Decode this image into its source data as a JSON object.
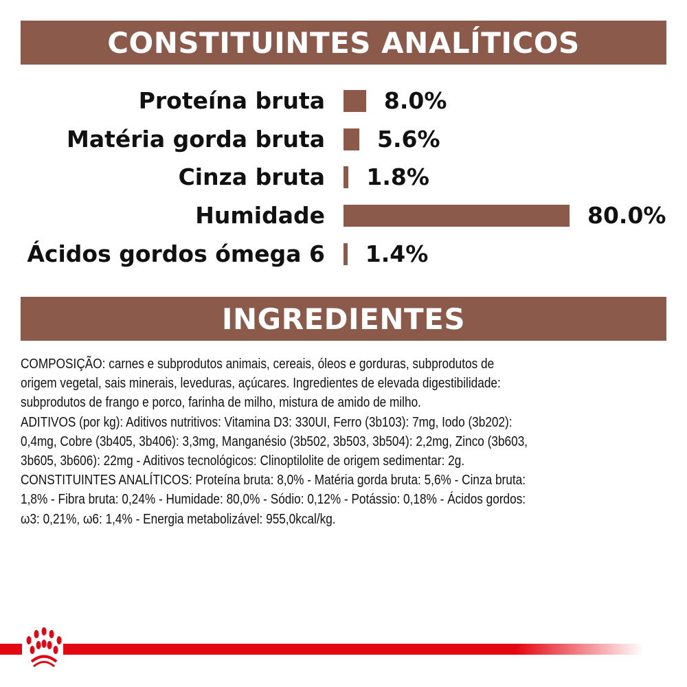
{
  "header1": "CONSTITUINTES ANALÍTICOS",
  "header2": "INGREDIENTES",
  "colors": {
    "band": "#8b5a4b",
    "bar": "#8b5a4b",
    "brand_red": "#e30613"
  },
  "chart_data": {
    "type": "bar",
    "orientation": "horizontal",
    "categories": [
      "Proteína bruta",
      "Matéria gorda bruta",
      "Cinza bruta",
      "Humidade",
      "Ácidos gordos ómega 6"
    ],
    "values": [
      8.0,
      5.6,
      1.8,
      80.0,
      1.4
    ],
    "value_labels": [
      "8.0%",
      "5.6%",
      "1.8%",
      "80.0%",
      "1.4%"
    ],
    "unit": "%",
    "xlim": [
      0,
      80
    ],
    "grid": false
  },
  "ingredients_lines": [
    "COMPOSIÇÃO: carnes e subprodutos animais, cereais, óleos e gorduras, subprodutos de",
    "origem vegetal, sais minerais, leveduras, açúcares. Ingredientes de elevada digestibilidade:",
    "subprodutos de frango e porco, farinha de milho, mistura de amido de milho.",
    "ADITIVOS (por kg): Aditivos nutritivos: Vitamina D3: 330UI, Ferro (3b103): 7mg, Iodo (3b202):",
    "0,4mg, Cobre (3b405, 3b406): 3,3mg, Manganésio (3b502, 3b503, 3b504): 2,2mg, Zinco (3b603,",
    "3b605, 3b606): 22mg - Aditivos tecnológicos: Clinoptilolite de origem sedimentar: 2g.",
    "CONSTITUINTES ANALÍTICOS: Proteína bruta: 8,0% - Matéria gorda bruta: 5,6% - Cinza bruta:",
    "1,8% - Fibra bruta: 0,24% - Humidade: 80,0% - Sódio: 0,12% - Potássio: 0,18% - Ácidos gordos:",
    "ω3: 0,21%, ω6: 1,4% - Energia metabolizável: 955,0kcal/kg."
  ],
  "logo": {
    "icon": "royal-canin-crown-icon"
  }
}
